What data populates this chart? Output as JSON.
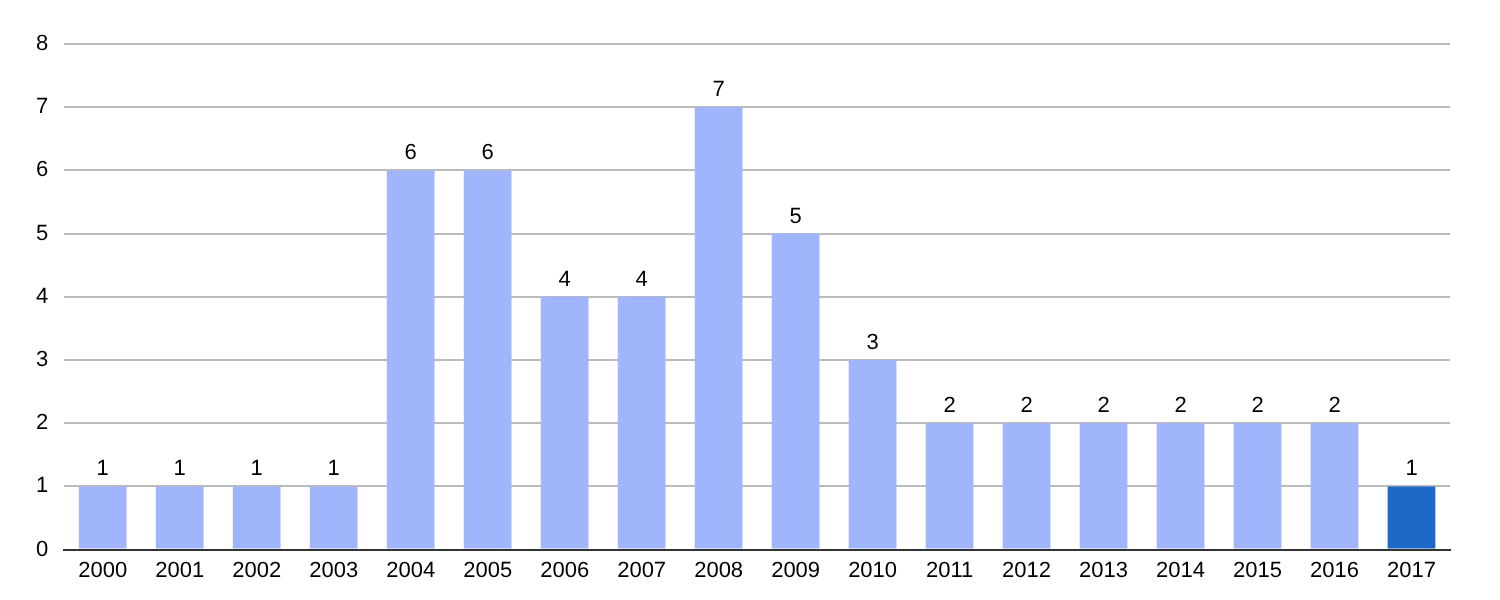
{
  "chart_data": {
    "type": "bar",
    "categories": [
      "2000",
      "2001",
      "2002",
      "2003",
      "2004",
      "2005",
      "2006",
      "2007",
      "2008",
      "2009",
      "2010",
      "2011",
      "2012",
      "2013",
      "2014",
      "2015",
      "2016",
      "2017"
    ],
    "values": [
      1,
      1,
      1,
      1,
      6,
      6,
      4,
      4,
      7,
      5,
      3,
      2,
      2,
      2,
      2,
      2,
      2,
      1
    ],
    "colors": [
      "#a0b5fc",
      "#a0b5fc",
      "#a0b5fc",
      "#a0b5fc",
      "#a0b5fc",
      "#a0b5fc",
      "#a0b5fc",
      "#a0b5fc",
      "#a0b5fc",
      "#a0b5fc",
      "#a0b5fc",
      "#a0b5fc",
      "#a0b5fc",
      "#a0b5fc",
      "#a0b5fc",
      "#a0b5fc",
      "#a0b5fc",
      "#1e68c8"
    ],
    "ylim": [
      0,
      8
    ],
    "yticks": [
      0,
      1,
      2,
      3,
      4,
      5,
      6,
      7,
      8
    ],
    "grid": "y",
    "data_labels": true
  }
}
